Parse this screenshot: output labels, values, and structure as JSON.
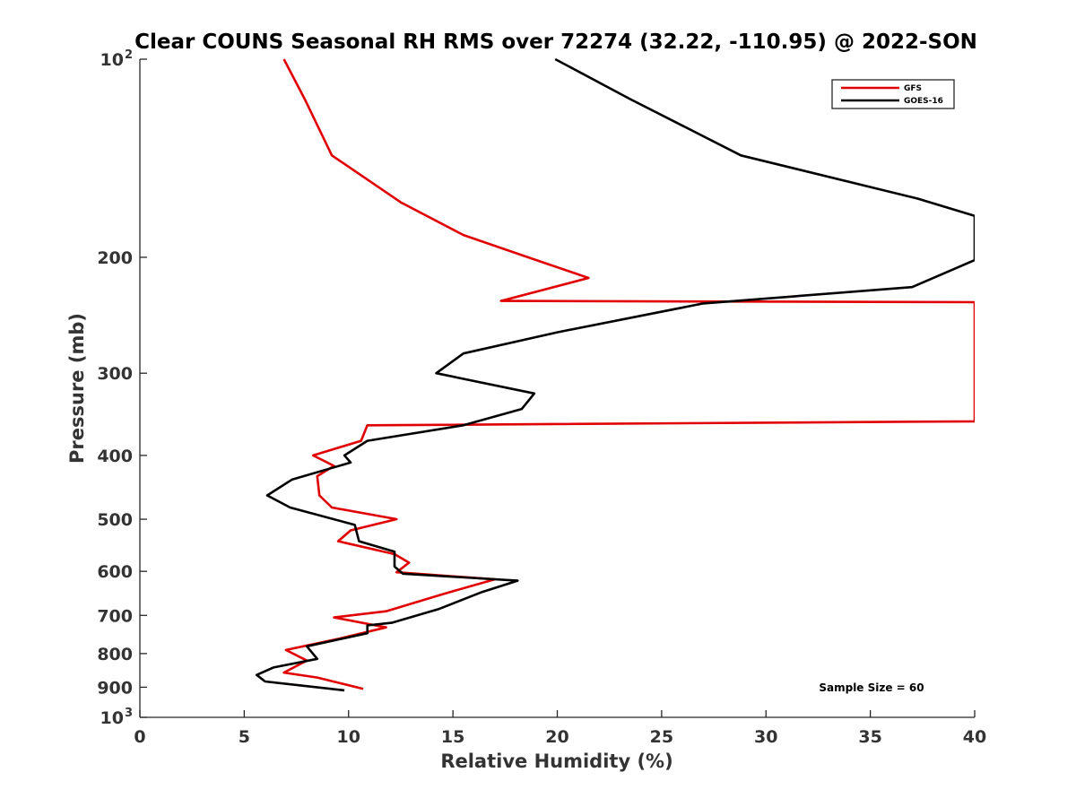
{
  "chart_data": {
    "type": "line",
    "title": "Clear COUNS Seasonal RH RMS over 72274 (32.22, -110.95) @ 2022-SON",
    "xlabel": "Relative Humidity (%)",
    "ylabel": "Pressure (mb)",
    "xlim": [
      0,
      40
    ],
    "ylim": [
      100,
      1000
    ],
    "y_scale": "log",
    "y_reversed": true,
    "x_ticks": [
      {
        "value": 0,
        "label": "0"
      },
      {
        "value": 5,
        "label": "5"
      },
      {
        "value": 10,
        "label": "10"
      },
      {
        "value": 15,
        "label": "15"
      },
      {
        "value": 20,
        "label": "20"
      },
      {
        "value": 25,
        "label": "25"
      },
      {
        "value": 30,
        "label": "30"
      },
      {
        "value": 35,
        "label": "35"
      },
      {
        "value": 40,
        "label": "40"
      }
    ],
    "y_ticks": [
      {
        "value": 100,
        "label": "10",
        "exp": "2"
      },
      {
        "value": 200,
        "label": "200"
      },
      {
        "value": 300,
        "label": "300"
      },
      {
        "value": 400,
        "label": "400"
      },
      {
        "value": 500,
        "label": "500"
      },
      {
        "value": 600,
        "label": "600"
      },
      {
        "value": 700,
        "label": "700"
      },
      {
        "value": 800,
        "label": "800"
      },
      {
        "value": 900,
        "label": "900"
      },
      {
        "value": 1000,
        "label": "10",
        "exp": "3"
      }
    ],
    "legend_position": "top-right",
    "annotation": "Sample Size = 60",
    "series": [
      {
        "name": "GFS",
        "color": "#e00000",
        "points": [
          [
            6.9,
            100
          ],
          [
            7.9,
            115
          ],
          [
            9.2,
            140
          ],
          [
            12.5,
            165
          ],
          [
            15.5,
            185
          ],
          [
            19.0,
            202
          ],
          [
            21.5,
            215
          ],
          [
            17.3,
            233
          ],
          [
            40.0,
            234
          ],
          [
            40.0,
            355
          ],
          [
            10.9,
            360
          ],
          [
            10.6,
            380
          ],
          [
            8.3,
            400
          ],
          [
            9.3,
            415
          ],
          [
            8.5,
            430
          ],
          [
            8.6,
            460
          ],
          [
            9.2,
            480
          ],
          [
            12.3,
            500
          ],
          [
            10.1,
            520
          ],
          [
            9.5,
            540
          ],
          [
            12.2,
            565
          ],
          [
            12.9,
            582
          ],
          [
            12.3,
            602
          ],
          [
            17.0,
            617
          ],
          [
            14.5,
            650
          ],
          [
            11.8,
            690
          ],
          [
            9.3,
            705
          ],
          [
            11.8,
            730
          ],
          [
            9.5,
            760
          ],
          [
            7.0,
            790
          ],
          [
            8.0,
            820
          ],
          [
            6.9,
            855
          ],
          [
            8.5,
            870
          ],
          [
            10.7,
            905
          ]
        ]
      },
      {
        "name": "GOES-16",
        "color": "#000000",
        "points": [
          [
            19.9,
            100
          ],
          [
            23.5,
            115
          ],
          [
            28.8,
            140
          ],
          [
            37.3,
            163
          ],
          [
            40.0,
            173
          ],
          [
            40.0,
            202
          ],
          [
            37.0,
            222
          ],
          [
            27.0,
            235
          ],
          [
            20.0,
            260
          ],
          [
            15.5,
            280
          ],
          [
            14.2,
            300
          ],
          [
            18.9,
            322
          ],
          [
            18.3,
            340
          ],
          [
            15.5,
            360
          ],
          [
            10.9,
            380
          ],
          [
            9.8,
            400
          ],
          [
            10.1,
            410
          ],
          [
            7.3,
            435
          ],
          [
            6.1,
            460
          ],
          [
            7.2,
            480
          ],
          [
            10.3,
            510
          ],
          [
            10.5,
            540
          ],
          [
            12.2,
            560
          ],
          [
            12.2,
            590
          ],
          [
            12.6,
            605
          ],
          [
            18.1,
            620
          ],
          [
            16.4,
            645
          ],
          [
            14.3,
            685
          ],
          [
            12.1,
            718
          ],
          [
            10.9,
            725
          ],
          [
            10.9,
            745
          ],
          [
            8.0,
            780
          ],
          [
            8.5,
            815
          ],
          [
            6.4,
            840
          ],
          [
            5.6,
            862
          ],
          [
            6.0,
            882
          ],
          [
            9.8,
            910
          ]
        ]
      }
    ]
  }
}
